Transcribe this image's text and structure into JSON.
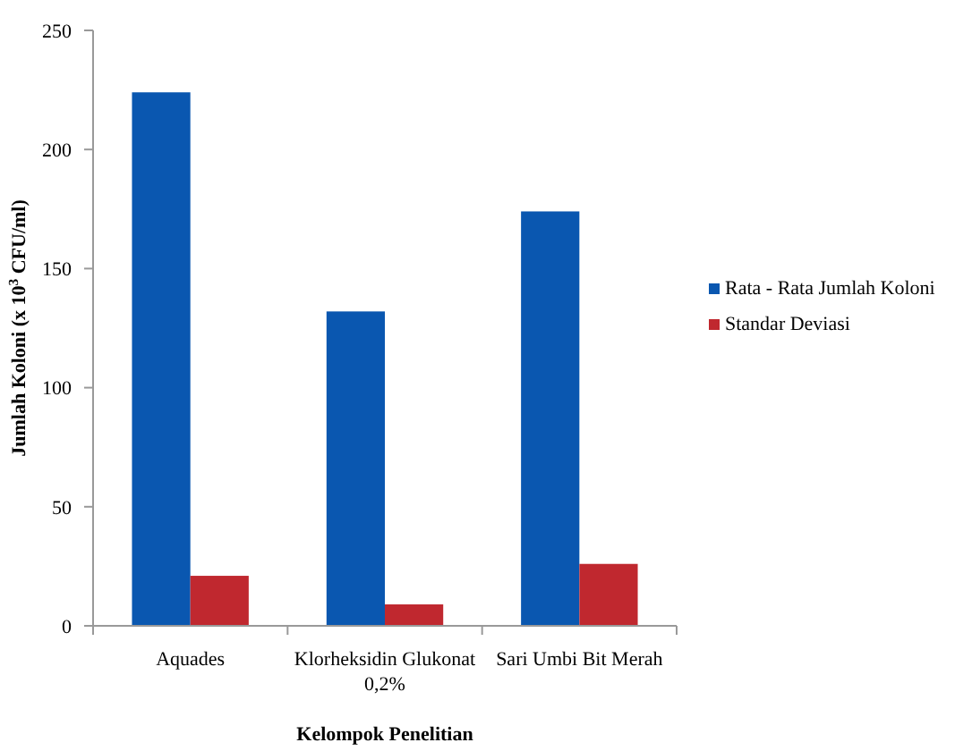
{
  "chart_data": {
    "type": "bar",
    "xlabel": "Kelompok Penelitian",
    "ylabel": "Jumlah Koloni (x 10$^{3}$ CFU/ml)",
    "categories": [
      "Aquades",
      "Klorheksidin Glukonat 0,2%",
      "Sari Umbi Bit Merah"
    ],
    "series": [
      {
        "name": "Rata - Rata Jumlah Koloni",
        "color": "#0a57b0",
        "values": [
          224,
          132,
          174
        ]
      },
      {
        "name": "Standar Deviasi",
        "color": "#c0282f",
        "values": [
          21,
          9,
          26
        ]
      }
    ],
    "ylim": [
      0,
      250
    ],
    "yticks": [
      0,
      50,
      100,
      150,
      200,
      250
    ],
    "grid": false,
    "legend": "right"
  }
}
